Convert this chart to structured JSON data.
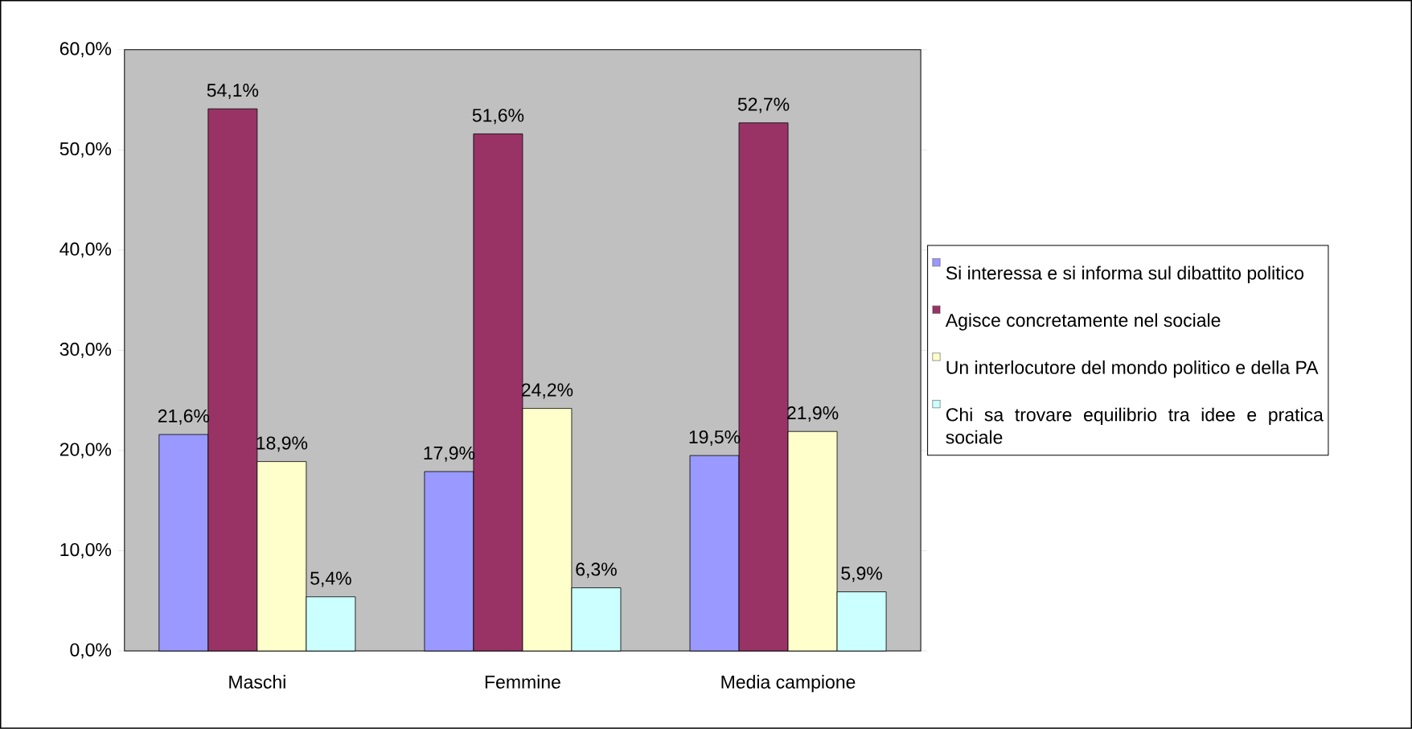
{
  "chart_data": {
    "type": "bar",
    "categories": [
      "Maschi",
      "Femmine",
      "Media campione"
    ],
    "series": [
      {
        "name": "Si interessa e si informa sul dibattito politico",
        "color": "#9999ff",
        "values": [
          21.6,
          17.9,
          19.5
        ],
        "value_labels": [
          "21,6%",
          "17,9%",
          "19,5%"
        ]
      },
      {
        "name": "Agisce concretamente nel sociale",
        "color": "#993366",
        "values": [
          54.1,
          51.6,
          52.7
        ],
        "value_labels": [
          "54,1%",
          "51,6%",
          "52,7%"
        ]
      },
      {
        "name": "Un interlocutore del mondo politico e della PA",
        "color": "#ffffcc",
        "values": [
          18.9,
          24.2,
          21.9
        ],
        "value_labels": [
          "18,9%",
          "24,2%",
          "21,9%"
        ]
      },
      {
        "name": "Chi sa trovare equilibrio tra idee e pratica sociale",
        "color": "#ccffff",
        "values": [
          5.4,
          6.3,
          5.9
        ],
        "value_labels": [
          "5,4%",
          "6,3%",
          "5,9%"
        ]
      }
    ],
    "ylim": [
      0,
      60
    ],
    "yticks": [
      {
        "value": 0,
        "label": "0,0%"
      },
      {
        "value": 10,
        "label": "10,0%"
      },
      {
        "value": 20,
        "label": "20,0%"
      },
      {
        "value": 30,
        "label": "30,0%"
      },
      {
        "value": 40,
        "label": "40,0%"
      },
      {
        "value": 50,
        "label": "50,0%"
      },
      {
        "value": 60,
        "label": "60,0%"
      }
    ],
    "grid": false,
    "legend": "right"
  }
}
